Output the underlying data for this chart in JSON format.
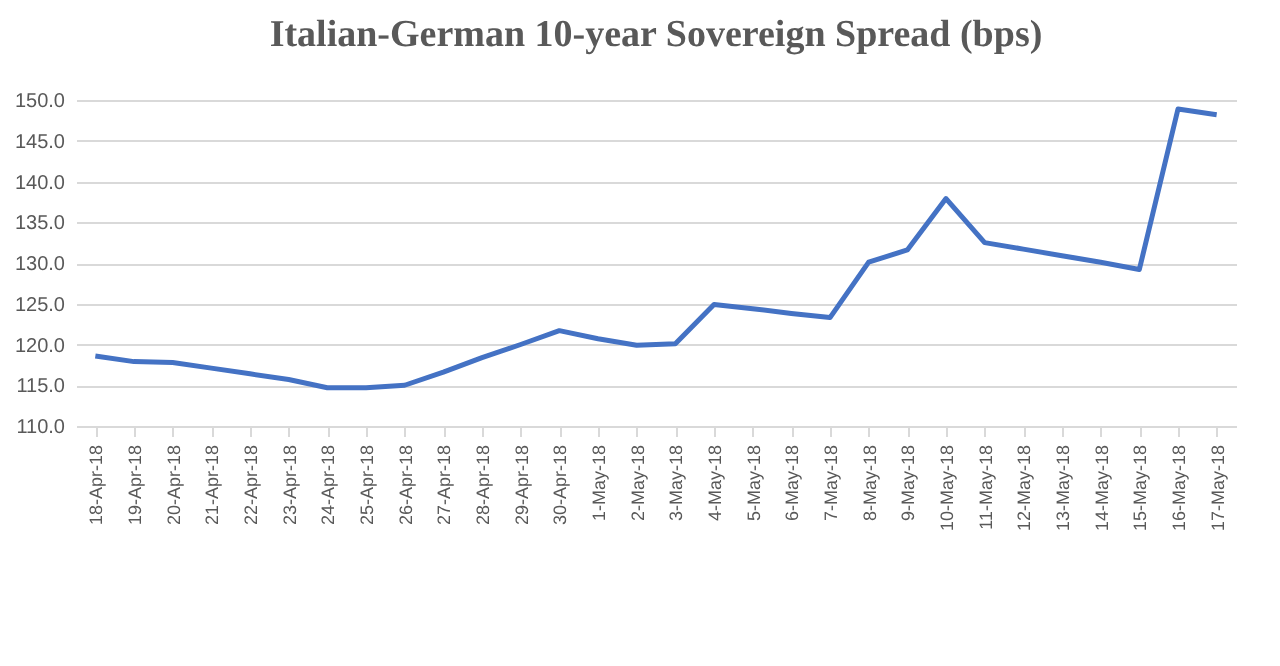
{
  "chart_data": {
    "type": "line",
    "title": "Italian-German 10-year Sovereign Spread (bps)",
    "categories": [
      "18-Apr-18",
      "19-Apr-18",
      "20-Apr-18",
      "21-Apr-18",
      "22-Apr-18",
      "23-Apr-18",
      "24-Apr-18",
      "25-Apr-18",
      "26-Apr-18",
      "27-Apr-18",
      "28-Apr-18",
      "29-Apr-18",
      "30-Apr-18",
      "1-May-18",
      "2-May-18",
      "3-May-18",
      "4-May-18",
      "5-May-18",
      "6-May-18",
      "7-May-18",
      "8-May-18",
      "9-May-18",
      "10-May-18",
      "11-May-18",
      "12-May-18",
      "13-May-18",
      "14-May-18",
      "15-May-18",
      "16-May-18",
      "17-May-18"
    ],
    "series": [
      {
        "color": "#4472c4",
        "values": [
          118.6,
          117.9,
          117.8,
          117.1,
          116.4,
          115.7,
          114.7,
          114.7,
          115.0,
          116.6,
          118.4,
          120.0,
          121.7,
          120.7,
          119.9,
          120.1,
          124.9,
          124.4,
          123.8,
          123.3,
          130.1,
          131.6,
          137.9,
          132.5,
          131.7,
          130.9,
          130.1,
          129.2,
          148.9,
          148.2
        ]
      }
    ],
    "ylim": [
      110,
      150
    ],
    "yticks": [
      {
        "value": 110,
        "label": "110.0"
      },
      {
        "value": 115,
        "label": "115.0"
      },
      {
        "value": 120,
        "label": "120.0"
      },
      {
        "value": 125,
        "label": "125.0"
      },
      {
        "value": 130,
        "label": "130.0"
      },
      {
        "value": 135,
        "label": "135.0"
      },
      {
        "value": 140,
        "label": "140.0"
      },
      {
        "value": 145,
        "label": "145.0"
      },
      {
        "value": 150,
        "label": "150.0"
      }
    ],
    "grid": "y",
    "legend": false,
    "marker": "none",
    "line_style": "solid"
  }
}
